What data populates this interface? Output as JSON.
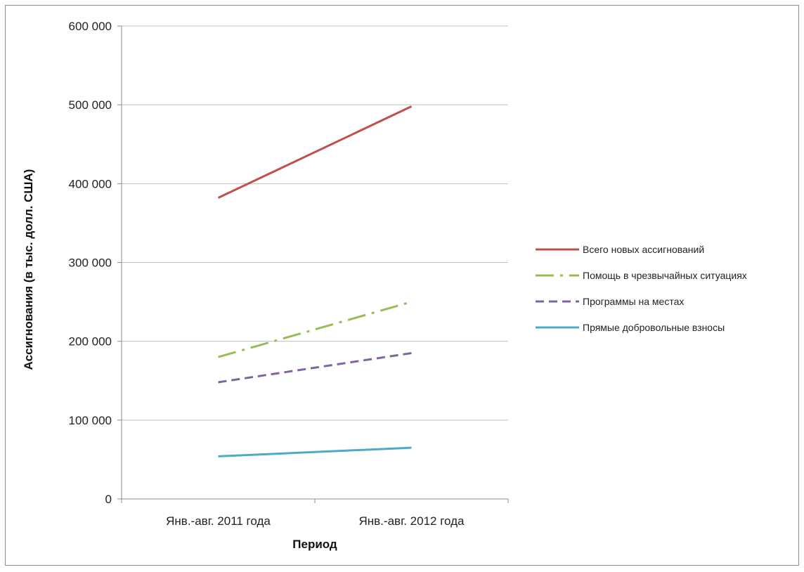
{
  "chart_data": {
    "type": "line",
    "title": "",
    "xlabel": "Период",
    "ylabel": "Ассигнования (в тыс. долл. США)",
    "categories": [
      "Янв.-авг. 2011 года",
      "Янв.-авг. 2012 года"
    ],
    "ylim": [
      0,
      600000
    ],
    "yticks": [
      0,
      100000,
      200000,
      300000,
      400000,
      500000,
      600000
    ],
    "ytick_labels": [
      "0",
      "100 000",
      "200 000",
      "300 000",
      "400 000",
      "500 000",
      "600 000"
    ],
    "grid": true,
    "legend_position": "right",
    "series": [
      {
        "name": "Всего новых ассигнований",
        "values": [
          382000,
          498000
        ],
        "color": "#c0504d",
        "dash": "solid"
      },
      {
        "name": "Помощь в чрезвычайных ситуациях",
        "values": [
          180000,
          250000
        ],
        "color": "#9bbb59",
        "dash": "dashdot"
      },
      {
        "name": "Программы на местах",
        "values": [
          148000,
          185000
        ],
        "color": "#8064a2",
        "dash": "dash"
      },
      {
        "name": "Прямые добровольные взносы",
        "values": [
          54000,
          65000
        ],
        "color": "#4bacc6",
        "dash": "solid"
      }
    ]
  }
}
